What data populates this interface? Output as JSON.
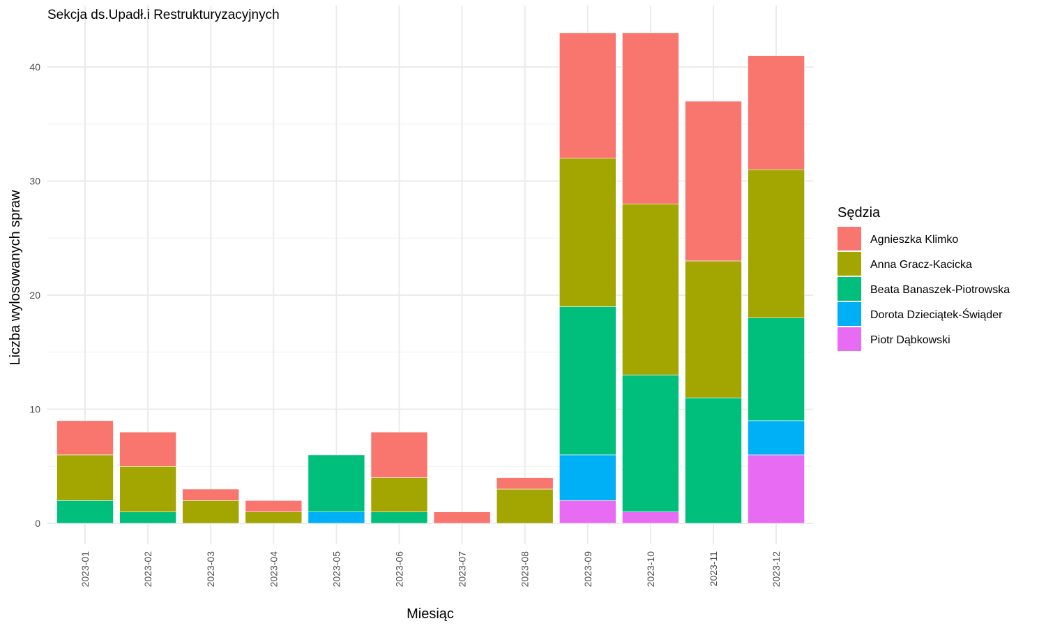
{
  "chart_data": {
    "type": "bar",
    "stacked": true,
    "title": "Sekcja ds.Upadł.i Restrukturyzacyjnych",
    "xlabel": "Miesiąc",
    "ylabel": "Liczba wylosowanych spraw",
    "ylim": [
      0,
      44
    ],
    "yticks": [
      0,
      10,
      20,
      30,
      40
    ],
    "grid": true,
    "legend_title": "Sędzia",
    "legend_position": "right",
    "categories": [
      "2023-01",
      "2023-02",
      "2023-03",
      "2023-04",
      "2023-05",
      "2023-06",
      "2023-07",
      "2023-08",
      "2023-09",
      "2023-10",
      "2023-11",
      "2023-12"
    ],
    "series": [
      {
        "name": "Agnieszka Klimko",
        "color": "#F8766D",
        "values": [
          3,
          3,
          1,
          1,
          0,
          4,
          1,
          1,
          11,
          15,
          14,
          10
        ]
      },
      {
        "name": "Anna Gracz-Kacicka",
        "color": "#A3A500",
        "values": [
          4,
          4,
          2,
          1,
          0,
          3,
          0,
          3,
          13,
          15,
          12,
          13
        ]
      },
      {
        "name": "Beata Banaszek-Piotrowska",
        "color": "#00BF7D",
        "values": [
          2,
          1,
          0,
          0,
          5,
          1,
          0,
          0,
          13,
          12,
          11,
          9
        ]
      },
      {
        "name": "Dorota Dzieciątek-Świąder",
        "color": "#00B0F6",
        "values": [
          0,
          0,
          0,
          0,
          1,
          0,
          0,
          0,
          4,
          0,
          0,
          3
        ]
      },
      {
        "name": "Piotr Dąbkowski",
        "color": "#E76BF3",
        "values": [
          0,
          0,
          0,
          0,
          0,
          0,
          0,
          0,
          2,
          1,
          0,
          6
        ]
      }
    ]
  }
}
